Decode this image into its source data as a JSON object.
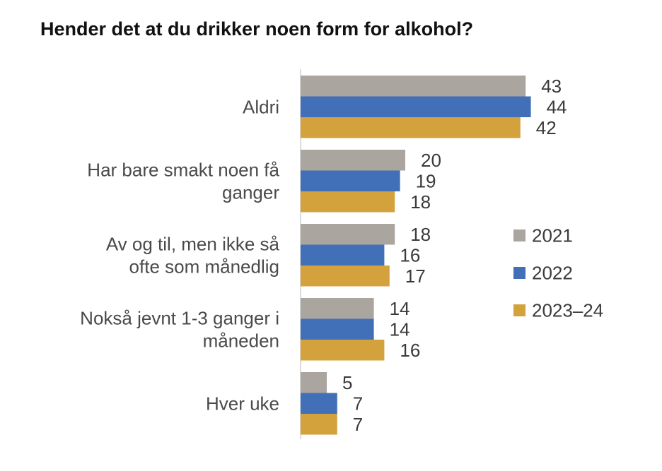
{
  "chart_data": {
    "type": "bar",
    "orientation": "horizontal",
    "title": "Hender det at du drikker noen form for alkohol?",
    "categories": [
      [
        "Aldri"
      ],
      [
        "Har bare smakt noen få",
        "ganger"
      ],
      [
        "Av og til, men ikke så",
        "ofte som månedlig"
      ],
      [
        "Nokså jevnt 1-3 ganger i",
        "måneden"
      ],
      [
        "Hver uke"
      ]
    ],
    "series": [
      {
        "name": "2021",
        "color": "#aaa59f",
        "values": [
          43,
          20,
          18,
          14,
          5
        ]
      },
      {
        "name": "2022",
        "color": "#4270b8",
        "values": [
          44,
          19,
          16,
          14,
          7
        ]
      },
      {
        "name": "2023–24",
        "color": "#d4a23c",
        "values": [
          42,
          18,
          17,
          16,
          7
        ]
      }
    ],
    "xlim": [
      0,
      44
    ],
    "grid": false,
    "legend_position": "right"
  }
}
